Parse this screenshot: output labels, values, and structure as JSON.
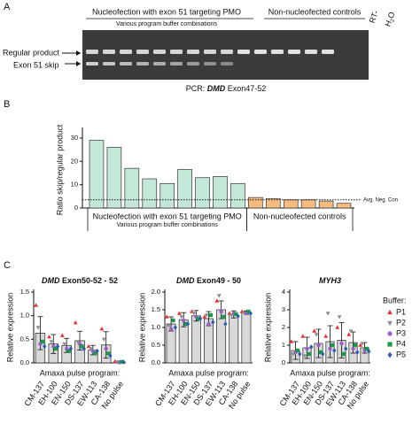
{
  "panel_labels": [
    "A",
    "B",
    "C"
  ],
  "gel": {
    "header_left": "Nucleofection with exon 51 targeting PMO",
    "header_left_sub": "Various program buffer combinations",
    "header_right": "Non-nucleofected controls",
    "rt_label": "RT-",
    "water_label": [
      "H",
      "2",
      "O"
    ],
    "band_labels": [
      "Regular product",
      "Exon 51 skip"
    ],
    "caption": [
      "PCR:",
      "DMD",
      "Exon47-52"
    ]
  },
  "buffer_legend": {
    "title": "Buffer:",
    "items": [
      {
        "name": "P1",
        "color": "#e8312f",
        "marker": "triangle"
      },
      {
        "name": "P2",
        "color": "#8c8c8c",
        "marker": "triangle-down"
      },
      {
        "name": "P3",
        "color": "#a05cc8",
        "marker": "circle"
      },
      {
        "name": "P4",
        "color": "#1a9a4a",
        "marker": "square"
      },
      {
        "name": "P5",
        "color": "#2f5fb0",
        "marker": "diamond"
      }
    ]
  },
  "chart_data": [
    {
      "type": "bar",
      "ylabel": "Ratio skip/regular product",
      "ylim": [
        0,
        33
      ],
      "yticks": [
        0,
        10,
        20,
        30
      ],
      "groups": [
        {
          "label": "Nucleofection with exon 51 targeting PMO",
          "sublabel": "Various program buffer combinations",
          "color": "#c3e8d8",
          "values": [
            29,
            26,
            17,
            12.5,
            10.5,
            16.5,
            13,
            13.5,
            10.5
          ]
        },
        {
          "label": "Non-nucleofected controls",
          "color": "#f6bb7e",
          "values": [
            4.5,
            4,
            3.5,
            3.5,
            3,
            2
          ]
        }
      ],
      "reference_line": {
        "value": 3.5,
        "label": "Avg. Neg. Con"
      }
    },
    {
      "type": "bar-points",
      "title_italic": "DMD",
      "title": "Exon50-52 - 52",
      "ylabel": "Relative expression",
      "xlabel": "Amaxa pulse program:",
      "categories": [
        "CM-137",
        "EH-100",
        "EN-150",
        "DS-137",
        "EW-113",
        "CA-138",
        "No pulse"
      ],
      "values": [
        0.63,
        0.4,
        0.37,
        0.47,
        0.27,
        0.38,
        0.02
      ],
      "errors": [
        0.35,
        0.2,
        0.15,
        0.2,
        0.1,
        0.28,
        0.01
      ],
      "points": [
        [
          1.22,
          0.55,
          0.58,
          0.85,
          0.35,
          0.72,
          0.03
        ],
        [
          0.75,
          0.45,
          0.4,
          0.45,
          0.3,
          0.5,
          0.02
        ],
        [
          0.4,
          0.35,
          0.3,
          0.4,
          0.25,
          0.3,
          0.01
        ],
        [
          0.45,
          0.3,
          0.25,
          0.35,
          0.2,
          0.2,
          0.02
        ],
        [
          0.35,
          0.35,
          0.3,
          0.3,
          0.25,
          0.15,
          0.02
        ]
      ],
      "ylim": [
        0,
        1.5
      ],
      "yticks": [
        {
          "value": 0,
          "label": "0.0"
        },
        0.5,
        {
          "value": 1,
          "label": "1.0"
        },
        1.5
      ]
    },
    {
      "type": "bar-points",
      "title_italic": "DMD",
      "title": "Exon49 - 50",
      "ylabel": "Relative expression",
      "xlabel": "Amaxa pulse program:",
      "categories": [
        "CM-137",
        "EH-100",
        "EN-150",
        "DS-137",
        "EW-113",
        "CA-138",
        "No pulse"
      ],
      "values": [
        1.1,
        1.22,
        1.33,
        1.25,
        1.5,
        1.37,
        1.42
      ],
      "errors": [
        0.2,
        0.2,
        0.15,
        0.2,
        0.25,
        0.1,
        0.05
      ],
      "points": [
        [
          1.3,
          1.4,
          1.45,
          1.3,
          1.75,
          1.4,
          1.45
        ],
        [
          1.05,
          1.3,
          1.4,
          1.35,
          1.9,
          1.35,
          1.42
        ],
        [
          0.95,
          1.2,
          1.3,
          1.1,
          1.45,
          1.4,
          1.4
        ],
        [
          1.2,
          1.1,
          1.25,
          1.35,
          1.3,
          1.38,
          1.45
        ],
        [
          1.0,
          1.1,
          1.25,
          1.15,
          1.1,
          1.32,
          1.4
        ]
      ],
      "ylim": [
        0,
        2
      ],
      "yticks": [
        {
          "value": 0,
          "label": "0.0"
        },
        0.5,
        {
          "value": 1,
          "label": "1.0"
        },
        1.5,
        {
          "value": 2,
          "label": "2.0"
        }
      ]
    },
    {
      "type": "bar-points",
      "title_italic": "MYH3",
      "ylabel": "Relative expression",
      "xlabel": "Amaxa pulse program:",
      "categories": [
        "CM-137",
        "EH-100",
        "EN-150",
        "DS-137",
        "EW-113",
        "CA-138",
        "No pulse"
      ],
      "values": [
        0.7,
        0.85,
        1.1,
        1.2,
        1.28,
        1.15,
        0.85
      ],
      "errors": [
        0.5,
        0.6,
        0.8,
        0.9,
        1.0,
        0.6,
        0.3
      ],
      "points": [
        [
          1.2,
          1.5,
          1.8,
          1.5,
          2.0,
          1.6,
          1.0
        ],
        [
          0.5,
          0.4,
          1.6,
          2.8,
          2.6,
          1.8,
          1.1
        ],
        [
          0.6,
          0.8,
          1.0,
          0.8,
          1.1,
          0.8,
          0.7
        ],
        [
          0.7,
          0.5,
          0.6,
          1.0,
          0.5,
          1.0,
          0.8
        ],
        [
          0.5,
          0.9,
          0.5,
          0.7,
          0.8,
          0.6,
          0.65
        ]
      ],
      "ylim": [
        0,
        4
      ],
      "yticks": [
        0,
        1,
        2,
        3,
        4
      ]
    }
  ]
}
